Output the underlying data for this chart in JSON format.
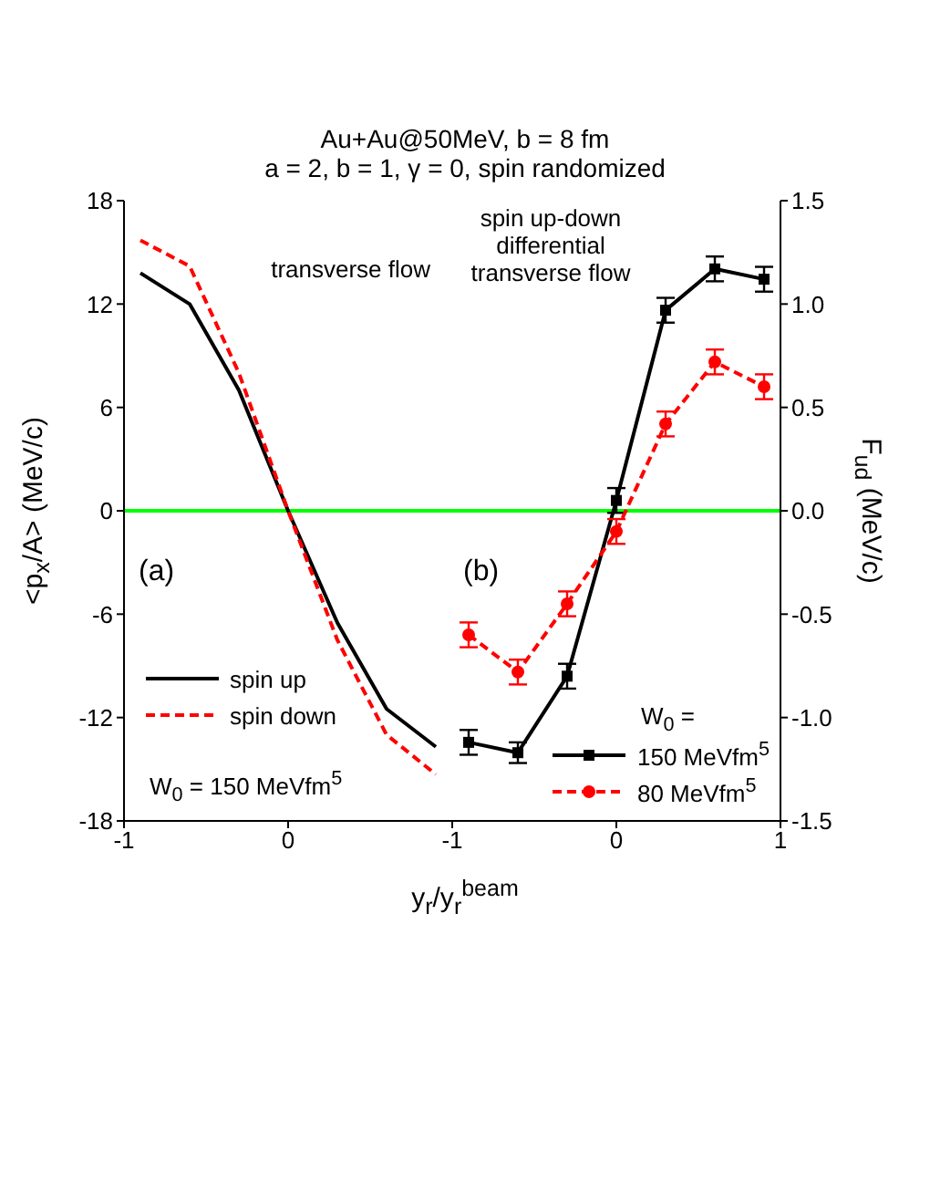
{
  "chart_data": [
    {
      "type": "line",
      "title": "Au+Au@50MeV, b = 8 fm",
      "subtitle": "a = 2, b = 1, γ = 0, spin randomized",
      "xlabel": "y$_{r}$/y$_{r}$$^{beam}$",
      "ylabel": "<p$_{x}$/A> (MeV/c)",
      "annotations": [
        "(a)",
        "transverse flow",
        "W$_{0}$ = 150 MeVfm$^{5}$"
      ],
      "x": [
        -0.9,
        -0.6,
        -0.3,
        0,
        0.3,
        0.6,
        0.9
      ],
      "series": [
        {
          "name": "spin up",
          "color": "#000000",
          "line_style": "solid",
          "values": [
            13.8,
            12,
            7,
            0,
            -6.5,
            -11.5,
            -13.7
          ]
        },
        {
          "name": "spin down",
          "color": "#ff0000",
          "line_style": "dashed",
          "values": [
            15.7,
            14.2,
            8,
            0,
            -7.5,
            -13,
            -15.3
          ]
        }
      ],
      "xlim": [
        -1,
        1
      ],
      "xticks": [
        -1,
        0
      ],
      "ylim": [
        -18,
        18
      ],
      "yticks": [
        -18,
        -12,
        -6,
        0,
        6,
        12,
        18
      ],
      "ref_lines": [
        {
          "axis": "y",
          "value": 0,
          "color": "#00ff00"
        }
      ],
      "legend": "bottom left",
      "marker": "none"
    },
    {
      "type": "line",
      "y2label": "F$_{ud}$ (MeV/c)",
      "legend_title": "W$_{0}$ =",
      "annotations": [
        "(b)",
        "spin up-down differential transverse flow"
      ],
      "x": [
        -0.9,
        -0.6,
        -0.3,
        0,
        0.3,
        0.6,
        0.9
      ],
      "series": [
        {
          "name": "150 MeVfm$^{5}$",
          "color": "#000000",
          "line_style": "solid",
          "marker": "square",
          "axis": "y2",
          "values": [
            -1.12,
            -1.17,
            -0.8,
            0.05,
            0.97,
            1.17,
            1.12
          ],
          "errors": [
            0.06,
            0.05,
            0.06,
            0.06,
            0.06,
            0.06,
            0.06
          ]
        },
        {
          "name": "80 MeVfm$^{5}$",
          "color": "#ff0000",
          "line_style": "dashed",
          "marker": "circle",
          "axis": "y2",
          "values": [
            -0.6,
            -0.78,
            -0.45,
            -0.1,
            0.42,
            0.72,
            0.6
          ],
          "errors": [
            0.06,
            0.06,
            0.06,
            0.06,
            0.06,
            0.06,
            0.06
          ]
        }
      ],
      "xlim": [
        -1,
        1
      ],
      "xticks": [
        -1,
        0,
        1
      ],
      "y2lim": [
        -1.5,
        1.5
      ],
      "y2ticks": [
        -1.5,
        {
          "value": -1,
          "label": "-1.0"
        },
        -0.5,
        {
          "value": 0,
          "label": "0.0"
        },
        0.5,
        {
          "value": 1,
          "label": "1.0"
        },
        1.5
      ],
      "ref_lines": [
        {
          "axis": "y2",
          "value": 0,
          "color": "#00ff00"
        }
      ],
      "legend": "bottom right"
    }
  ]
}
